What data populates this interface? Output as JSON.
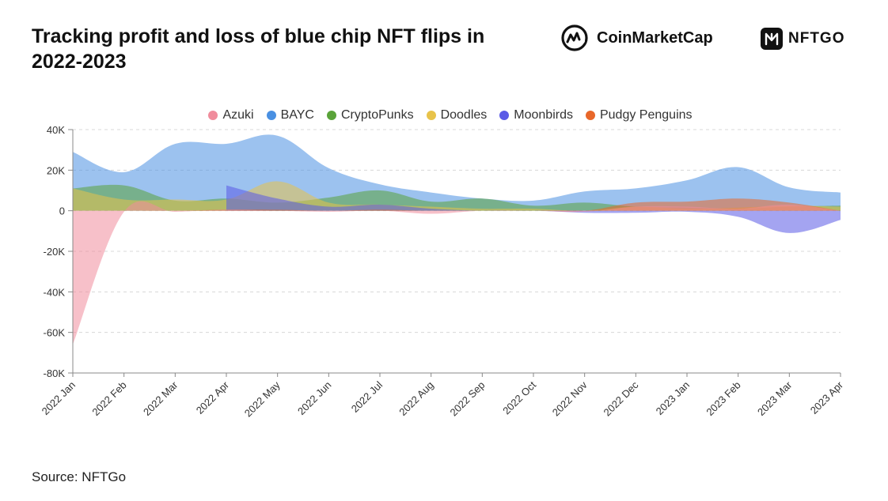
{
  "title": "Tracking profit and loss of blue chip NFT flips in 2022-2023",
  "source": "Source: NFTGo",
  "logos": {
    "cmc": {
      "text": "CoinMarketCap",
      "icon": "coinmarketcap-icon",
      "color": "#111111"
    },
    "nftgo": {
      "text": "NFTGO",
      "icon": "nftgo-icon",
      "color": "#111111"
    }
  },
  "chart_data": {
    "type": "area",
    "title": "",
    "xlabel": "",
    "ylabel": "",
    "x": [
      "2022 Jan",
      "2022 Feb",
      "2022 Mar",
      "2022 Apr",
      "2022 May",
      "2022 Jun",
      "2022 Jul",
      "2022 Aug",
      "2022 Sep",
      "2022 Oct",
      "2022 Nov",
      "2022 Dec",
      "2023 Jan",
      "2023 Feb",
      "2023 Mar",
      "2023 Apr"
    ],
    "ylim": [
      -80000,
      40000
    ],
    "yticks": [
      40000,
      20000,
      0,
      -20000,
      -40000,
      -60000,
      -80000
    ],
    "ytick_labels": [
      "40K",
      "20K",
      "0",
      "-20K",
      "-40K",
      "-60K",
      "-80K"
    ],
    "grid": true,
    "legend_position": "top-center",
    "series": [
      {
        "name": "BAYC",
        "color": "#4a90e2",
        "values": [
          29000,
          19000,
          33000,
          33000,
          37000,
          21000,
          13000,
          9000,
          6000,
          5000,
          9500,
          11000,
          15000,
          21500,
          11500,
          9000
        ]
      },
      {
        "name": "Azuki",
        "color": "#f08c9c",
        "values": [
          -66000,
          -500,
          -500,
          500,
          0,
          -500,
          0,
          -1500,
          0,
          0,
          -500,
          2000,
          2000,
          1000,
          3000,
          0
        ]
      },
      {
        "name": "CryptoPunks",
        "color": "#5aa33a",
        "values": [
          11000,
          12500,
          5000,
          6000,
          4000,
          6500,
          10000,
          4500,
          6000,
          2500,
          4000,
          2000,
          1500,
          1000,
          2000,
          2500
        ]
      },
      {
        "name": "Doodles",
        "color": "#e8c34a",
        "values": [
          11000,
          5500,
          5500,
          5500,
          14500,
          4000,
          3000,
          2000,
          1000,
          1000,
          0,
          2000,
          1000,
          1500,
          2500,
          2000
        ]
      },
      {
        "name": "Moonbirds",
        "color": "#5a5ae6",
        "values": [
          0,
          0,
          0,
          12500,
          6000,
          2000,
          3000,
          1000,
          0,
          0,
          -1000,
          -1000,
          -500,
          -3000,
          -11000,
          -4500
        ]
      },
      {
        "name": "Pudgy Penguins",
        "color": "#e8672a",
        "values": [
          0,
          0,
          0,
          500,
          500,
          0,
          500,
          0,
          0,
          0,
          0,
          4000,
          4500,
          6000,
          4000,
          0
        ]
      }
    ]
  }
}
